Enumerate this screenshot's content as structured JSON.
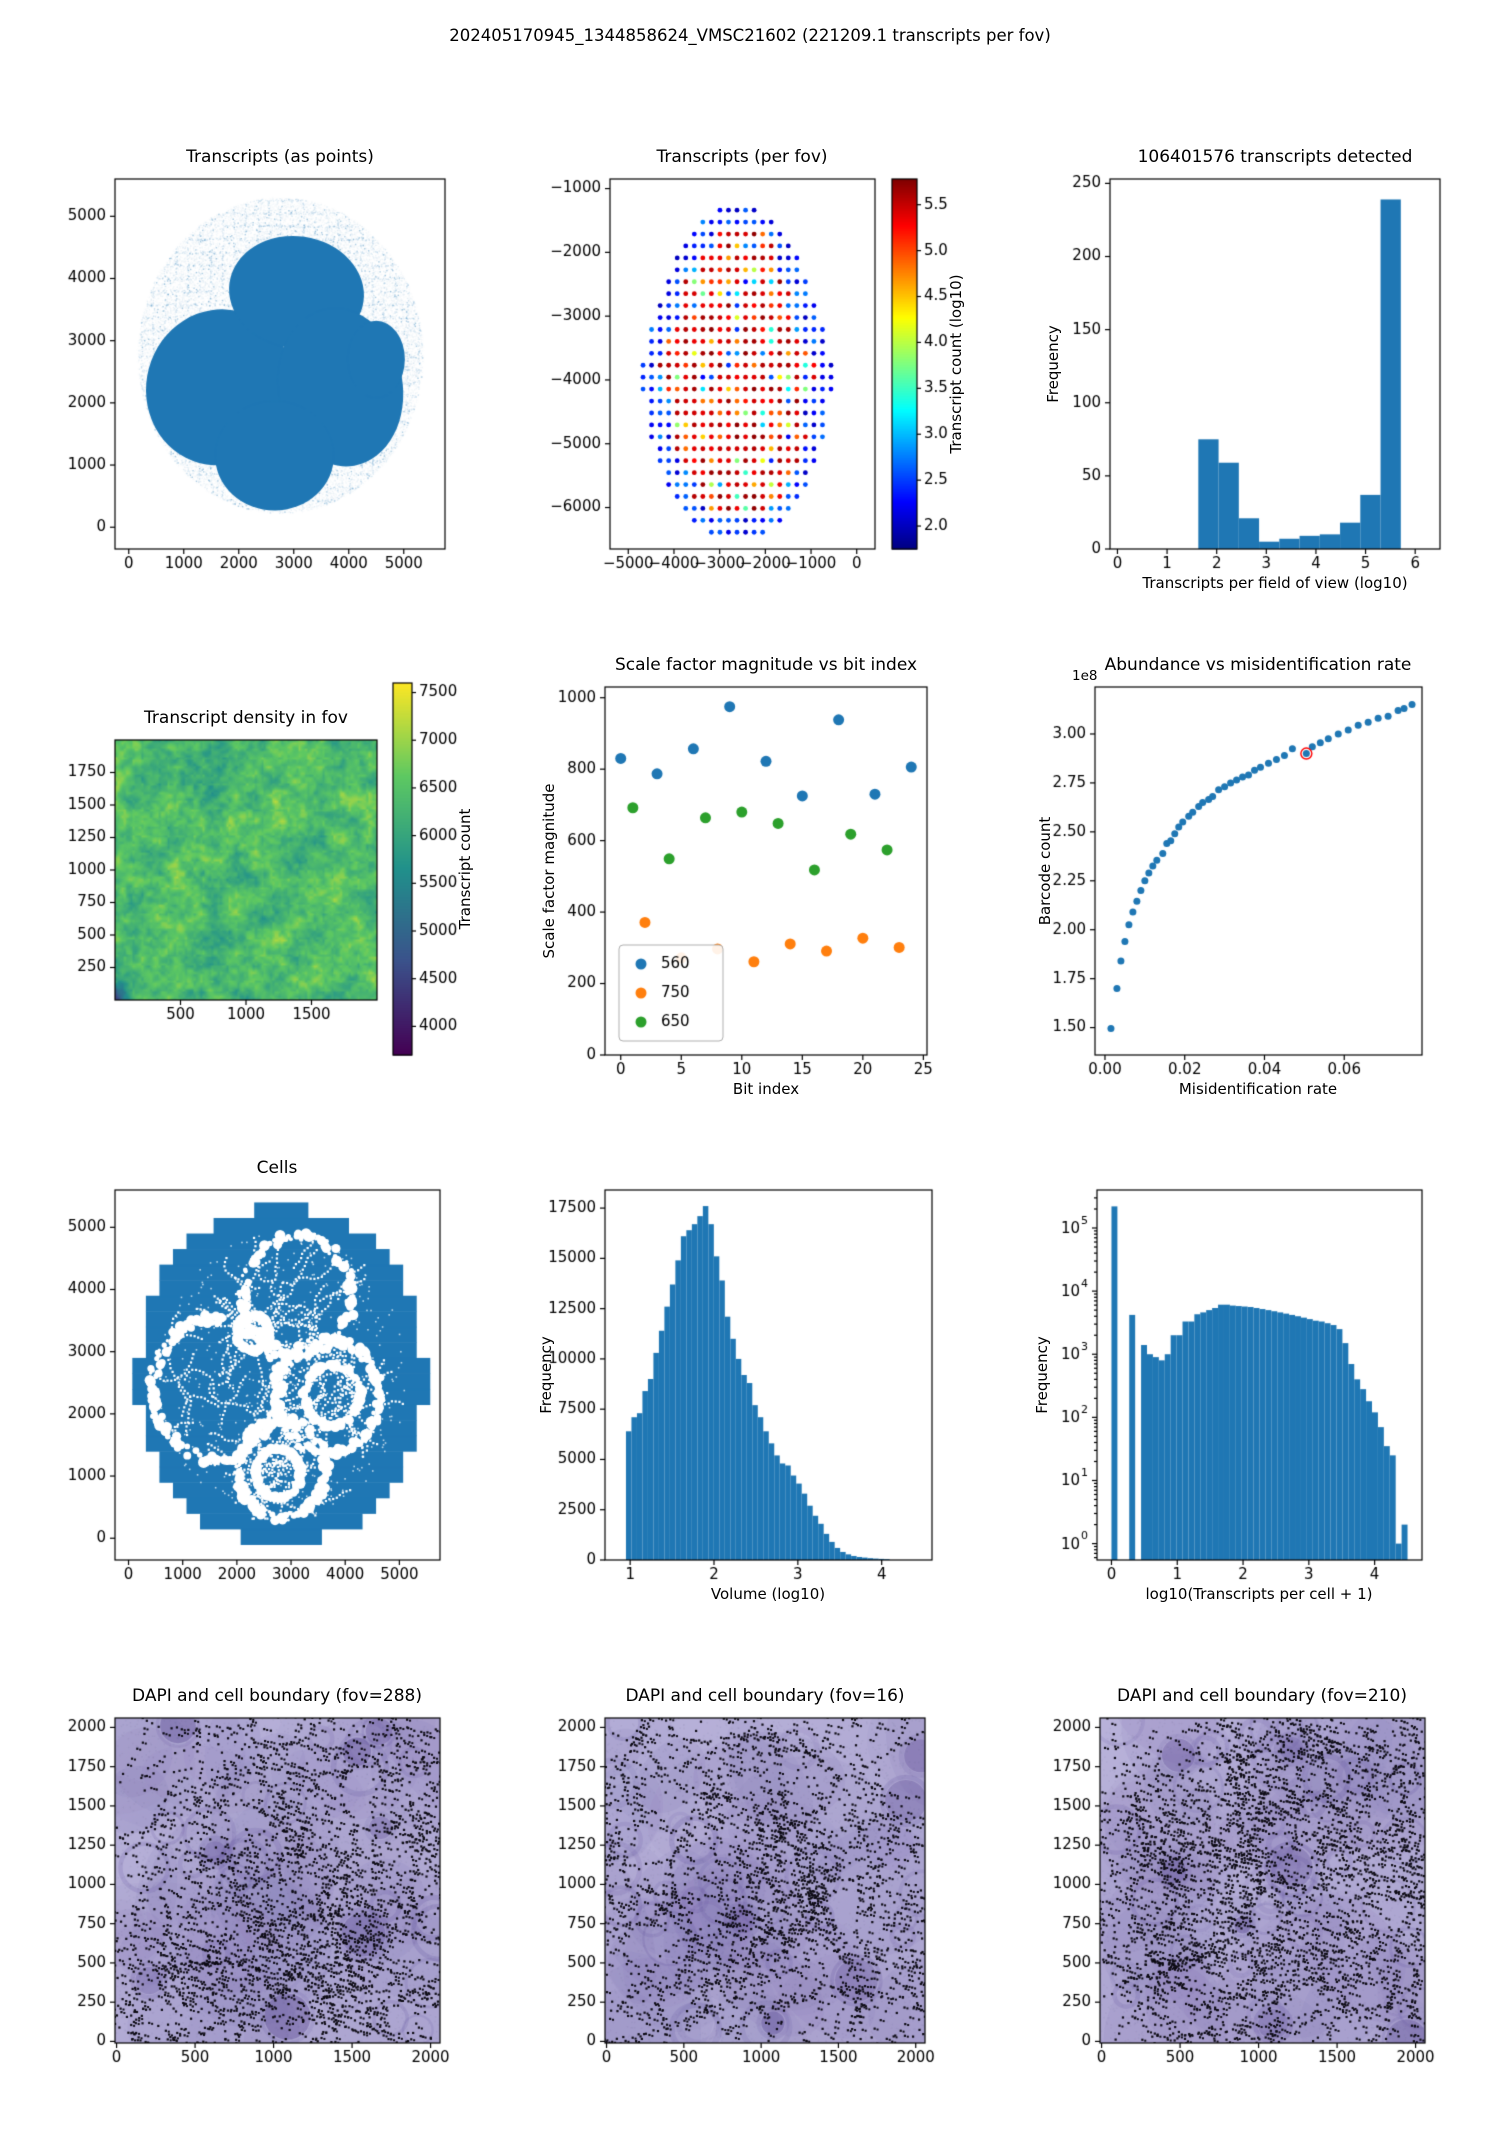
{
  "figure": {
    "title": "202405170945_1344858624_VMSC21602 (221209.1 transcripts per fov)",
    "background": "#ffffff"
  },
  "colors": {
    "primary_blue": "#1f77b4",
    "orange": "#ff7f0e",
    "green": "#2ca02c",
    "highlight_red": "#ff0000",
    "dapi_background": "#b3acd6",
    "dapi_boundary_dot": "#0d0b14"
  },
  "chart_data": [
    {
      "id": "transcripts_points",
      "type": "scatter",
      "render": "tissue",
      "title": "Transcripts (as points)",
      "xlim": [
        -250,
        5750
      ],
      "ylim": [
        -350,
        5600
      ],
      "xticks": [
        0,
        1000,
        2000,
        3000,
        4000,
        5000
      ],
      "yticks": [
        0,
        1000,
        2000,
        3000,
        4000,
        5000
      ],
      "color": "#1f77b4",
      "halo": {
        "cx": 2750,
        "cy": 2770,
        "r": 2590
      },
      "lobes": [
        [
          1650,
          2250,
          1330,
          1260,
          -15
        ],
        [
          3050,
          3780,
          1230,
          900,
          -8
        ],
        [
          3850,
          2250,
          1130,
          1280,
          10
        ],
        [
          2650,
          1150,
          1080,
          880,
          0
        ],
        [
          4500,
          2700,
          520,
          620,
          0
        ]
      ]
    },
    {
      "id": "transcripts_per_fov",
      "type": "scatter",
      "render": "fovgrid",
      "title": "Transcripts (per fov)",
      "xlim": [
        -5400,
        400
      ],
      "ylim": [
        -6650,
        -850
      ],
      "xticks": [
        -5000,
        -4000,
        -3000,
        -2000,
        -1000,
        0
      ],
      "yticks": [
        -1000,
        -2000,
        -3000,
        -4000,
        -5000,
        -6000
      ],
      "grid": {
        "cx": -2620,
        "cy": -3850,
        "rx": 2080,
        "ry": 2650,
        "step": 187
      },
      "colorbar": {
        "label": "Transcript count (log10)",
        "cmap": "jet",
        "ticks": [
          2.0,
          2.5,
          3.0,
          3.5,
          4.0,
          4.5,
          5.0,
          5.5
        ],
        "fmt": 1,
        "vmin": 1.75,
        "vmax": 5.78
      }
    },
    {
      "id": "transcripts_detected",
      "type": "bar",
      "render": "hist",
      "title": "106401576 transcripts detected",
      "xlabel": "Transcripts per field of view (log10)",
      "ylabel": "Frequency",
      "bin_start": 1.63,
      "bin_width": 0.408,
      "values": [
        75,
        59,
        21,
        5,
        7,
        9,
        10,
        18,
        37,
        239
      ],
      "xlim": [
        -0.15,
        6.5
      ],
      "ylim": [
        0,
        253
      ],
      "xticks": [
        0,
        1,
        2,
        3,
        4,
        5,
        6
      ],
      "yticks": [
        0,
        50,
        100,
        150,
        200,
        250
      ],
      "color": "#1f77b4"
    },
    {
      "id": "transcript_density",
      "type": "heatmap",
      "render": "heatmap",
      "title": "Transcript density in fov",
      "xlim": [
        0,
        2000
      ],
      "ylim": [
        0,
        2000
      ],
      "xticks": [
        500,
        1000,
        1500
      ],
      "yticks": [
        250,
        500,
        750,
        1000,
        1250,
        1500,
        1750
      ],
      "value_range": [
        5400,
        7400
      ],
      "colorbar": {
        "label": "Transcript count",
        "cmap": "viridis",
        "ticks": [
          4000,
          4500,
          5000,
          5500,
          6000,
          6500,
          7000,
          7500
        ],
        "vmin": 3700,
        "vmax": 7600
      }
    },
    {
      "id": "scale_factor_vs_bit",
      "type": "scatter",
      "render": "series_scatter",
      "title": "Scale factor magnitude vs bit index",
      "xlabel": "Bit index",
      "ylabel": "Scale factor magnitude",
      "xlim": [
        -1.3,
        25.3
      ],
      "ylim": [
        0,
        1030
      ],
      "xticks": [
        0,
        5,
        10,
        15,
        20,
        25
      ],
      "yticks": [
        0,
        200,
        400,
        600,
        800,
        1000
      ],
      "series": [
        {
          "name": "560",
          "color": "#1f77b4",
          "x": [
            0,
            3,
            6,
            9,
            12,
            15,
            18,
            21,
            24
          ],
          "y": [
            830,
            787,
            857,
            975,
            822,
            725,
            938,
            730,
            806
          ]
        },
        {
          "name": "750",
          "color": "#ff7f0e",
          "x": [
            2,
            5,
            8,
            11,
            14,
            17,
            20,
            23
          ],
          "y": [
            371,
            272,
            297,
            261,
            311,
            291,
            327,
            301
          ]
        },
        {
          "name": "650",
          "color": "#2ca02c",
          "x": [
            1,
            4,
            7,
            10,
            13,
            16,
            19,
            22
          ],
          "y": [
            692,
            549,
            664,
            680,
            648,
            518,
            618,
            574
          ]
        }
      ],
      "legend": {
        "position": "lower-left",
        "labels": [
          "560",
          "750",
          "650"
        ]
      }
    },
    {
      "id": "abundance_vs_misid",
      "type": "scatter",
      "render": "curve_scatter",
      "title": "Abundance vs misidentification rate",
      "xlabel": "Misidentification rate",
      "ylabel": "Barcode count",
      "offset_text": "1e8",
      "xlim": [
        -0.0025,
        0.0795
      ],
      "ylim": [
        1.36,
        3.24
      ],
      "xticks": [
        0,
        0.02,
        0.04,
        0.06
      ],
      "xfmt": 2,
      "yticks": [
        1.5,
        1.75,
        2.0,
        2.25,
        2.5,
        2.75,
        3.0
      ],
      "yfmt": 2,
      "color": "#1f77b4",
      "x": [
        0.0015,
        0.003,
        0.004,
        0.005,
        0.006,
        0.007,
        0.008,
        0.009,
        0.01,
        0.011,
        0.012,
        0.013,
        0.0145,
        0.0155,
        0.0165,
        0.0175,
        0.0185,
        0.0195,
        0.021,
        0.022,
        0.0235,
        0.0245,
        0.026,
        0.027,
        0.0285,
        0.03,
        0.0315,
        0.033,
        0.0345,
        0.036,
        0.0375,
        0.039,
        0.041,
        0.043,
        0.045,
        0.047,
        0.0505,
        0.052,
        0.054,
        0.056,
        0.0585,
        0.061,
        0.0635,
        0.066,
        0.0685,
        0.071,
        0.0735,
        0.075,
        0.077
      ],
      "y": [
        1.495,
        1.7,
        1.84,
        1.94,
        2.025,
        2.09,
        2.145,
        2.2,
        2.25,
        2.29,
        2.325,
        2.355,
        2.39,
        2.44,
        2.455,
        2.49,
        2.525,
        2.55,
        2.58,
        2.6,
        2.63,
        2.65,
        2.665,
        2.68,
        2.715,
        2.73,
        2.75,
        2.765,
        2.78,
        2.79,
        2.815,
        2.83,
        2.85,
        2.87,
        2.89,
        2.925,
        2.9,
        2.935,
        2.955,
        2.975,
        3.0,
        3.02,
        3.045,
        3.06,
        3.08,
        3.09,
        3.12,
        3.13,
        3.15
      ],
      "highlight": {
        "x": 0.0505,
        "y": 2.9,
        "color": "#ff0000"
      }
    },
    {
      "id": "cells",
      "type": "scatter",
      "render": "cells",
      "title": "Cells",
      "xlim": [
        -250,
        5750
      ],
      "ylim": [
        -350,
        5600
      ],
      "xticks": [
        0,
        1000,
        2000,
        3000,
        4000,
        5000
      ],
      "yticks": [
        0,
        1000,
        2000,
        3000,
        4000,
        5000
      ],
      "color": "#1f77b4"
    },
    {
      "id": "volume_hist",
      "type": "bar",
      "render": "hist",
      "title": "",
      "xlabel": "Volume (log10)",
      "ylabel": "Frequency",
      "bin_start": 0.95,
      "bin_width": 0.0655,
      "values": [
        6400,
        7100,
        7300,
        8400,
        9000,
        10300,
        11400,
        12600,
        13700,
        14900,
        16100,
        16400,
        16700,
        17100,
        17600,
        16700,
        15100,
        13900,
        12100,
        11000,
        10000,
        9200,
        8800,
        7700,
        7100,
        6400,
        5800,
        5200,
        4800,
        4700,
        4200,
        3800,
        3300,
        2700,
        2200,
        1800,
        1300,
        900,
        600,
        400,
        280,
        200,
        150,
        120,
        90,
        70,
        55,
        40
      ],
      "xlim": [
        0.7,
        4.6
      ],
      "ylim": [
        0,
        18400
      ],
      "xticks": [
        1,
        2,
        3,
        4
      ],
      "yticks": [
        0,
        2500,
        5000,
        7500,
        10000,
        12500,
        15000,
        17500
      ],
      "color": "#1f77b4"
    },
    {
      "id": "transcripts_per_cell_hist",
      "type": "bar",
      "render": "hist",
      "title": "",
      "xlabel": "log10(Transcripts per cell + 1)",
      "ylabel": "Frequency",
      "ylog": true,
      "bin_start": 0,
      "bin_width": 0.09,
      "values": [
        220000,
        0,
        0,
        4200,
        0,
        1400,
        1000,
        900,
        800,
        1000,
        2000,
        2000,
        3300,
        3300,
        4300,
        4600,
        5000,
        5400,
        6100,
        6100,
        5900,
        5800,
        5700,
        5600,
        5400,
        5200,
        5000,
        4800,
        4600,
        4400,
        4200,
        4000,
        3800,
        3600,
        3400,
        3300,
        3100,
        2900,
        2500,
        1500,
        700,
        400,
        280,
        180,
        120,
        70,
        35,
        25,
        1,
        2
      ],
      "xlim": [
        -0.22,
        4.72
      ],
      "ylim": [
        0.55,
        400000
      ],
      "xticks": [
        0,
        1,
        2,
        3,
        4
      ],
      "yticks": [
        1,
        10,
        100,
        1000,
        10000,
        100000
      ],
      "color": "#1f77b4"
    },
    {
      "id": "dapi_fov288",
      "type": "image",
      "render": "dapi",
      "title": "DAPI and cell boundary (fov=288)",
      "seed": 288,
      "clusters": 240,
      "blobs": 30,
      "bias": "bottom-right",
      "xlim": [
        -10,
        2060
      ],
      "ylim": [
        -10,
        2060
      ],
      "xticks": [
        0,
        500,
        1000,
        1500,
        2000
      ],
      "yticks": [
        0,
        250,
        500,
        750,
        1000,
        1250,
        1500,
        1750,
        2000
      ]
    },
    {
      "id": "dapi_fov16",
      "type": "image",
      "render": "dapi",
      "title": "DAPI and cell boundary (fov=16)",
      "seed": 16,
      "clusters": 205,
      "blobs": 30,
      "bias": "uniform",
      "xlim": [
        -10,
        2060
      ],
      "ylim": [
        -10,
        2060
      ],
      "xticks": [
        0,
        500,
        1000,
        1500,
        2000
      ],
      "yticks": [
        0,
        250,
        500,
        750,
        1000,
        1250,
        1500,
        1750,
        2000
      ]
    },
    {
      "id": "dapi_fov210",
      "type": "image",
      "render": "dapi",
      "title": "DAPI and cell boundary (fov=210)",
      "seed": 210,
      "clusters": 265,
      "blobs": 46,
      "bias": "uniform",
      "xlim": [
        -10,
        2060
      ],
      "ylim": [
        -10,
        2060
      ],
      "xticks": [
        0,
        500,
        1000,
        1500,
        2000
      ],
      "yticks": [
        0,
        250,
        500,
        750,
        1000,
        1250,
        1500,
        1750,
        2000
      ]
    }
  ]
}
